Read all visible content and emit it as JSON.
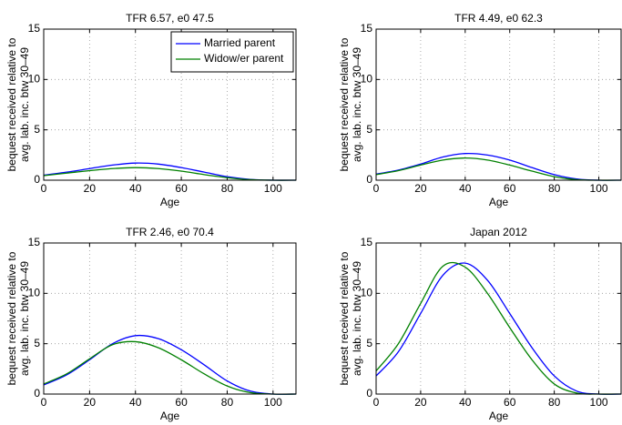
{
  "chart_data": [
    {
      "type": "line",
      "title": "TFR 6.57, e0 47.5",
      "xlabel": "Age",
      "ylabel": [
        "bequest received relative to",
        "avg. lab. inc. btw 30–49"
      ],
      "x": [
        0,
        10,
        20,
        30,
        40,
        50,
        60,
        70,
        80,
        90,
        100,
        110
      ],
      "series": [
        {
          "name": "Married parent",
          "color": "#0000ff",
          "values": [
            0.5,
            0.8,
            1.15,
            1.5,
            1.7,
            1.6,
            1.25,
            0.8,
            0.35,
            0.08,
            0,
            0
          ]
        },
        {
          "name": "Widow/er parent",
          "color": "#008000",
          "values": [
            0.45,
            0.7,
            0.95,
            1.15,
            1.25,
            1.15,
            0.9,
            0.55,
            0.25,
            0.05,
            0,
            0
          ]
        }
      ],
      "xlim": [
        0,
        110
      ],
      "ylim": [
        0,
        15
      ],
      "xticks": [
        0,
        20,
        40,
        60,
        80,
        100
      ],
      "yticks": [
        0,
        5,
        10,
        15
      ],
      "grid": true,
      "legend": "upper right"
    },
    {
      "type": "line",
      "title": "TFR 4.49, e0 62.3",
      "xlabel": "Age",
      "ylabel": [
        "bequest received relative to",
        "avg. lab. inc. btw 30–49"
      ],
      "x": [
        0,
        10,
        20,
        30,
        40,
        50,
        60,
        70,
        80,
        90,
        100,
        110
      ],
      "series": [
        {
          "color": "#0000ff",
          "values": [
            0.6,
            1.0,
            1.6,
            2.3,
            2.65,
            2.5,
            2.0,
            1.25,
            0.55,
            0.12,
            0,
            0
          ]
        },
        {
          "color": "#008000",
          "values": [
            0.55,
            0.95,
            1.5,
            2.0,
            2.2,
            2.0,
            1.5,
            0.9,
            0.35,
            0.05,
            0,
            0
          ]
        }
      ],
      "xlim": [
        0,
        110
      ],
      "ylim": [
        0,
        15
      ],
      "xticks": [
        0,
        20,
        40,
        60,
        80,
        100
      ],
      "yticks": [
        0,
        5,
        10,
        15
      ],
      "grid": true
    },
    {
      "type": "line",
      "title": "TFR 2.46, e0 70.4",
      "xlabel": "Age",
      "ylabel": [
        "bequest received relative to",
        "avg. lab. inc. btw 30–49"
      ],
      "x": [
        0,
        10,
        20,
        30,
        40,
        50,
        60,
        70,
        80,
        90,
        100,
        110
      ],
      "series": [
        {
          "color": "#0000ff",
          "values": [
            0.9,
            1.9,
            3.4,
            5.0,
            5.8,
            5.5,
            4.4,
            2.9,
            1.3,
            0.3,
            0,
            0
          ]
        },
        {
          "color": "#008000",
          "values": [
            1.0,
            2.0,
            3.5,
            4.9,
            5.2,
            4.6,
            3.4,
            2.0,
            0.8,
            0.15,
            0,
            0
          ]
        }
      ],
      "xlim": [
        0,
        110
      ],
      "ylim": [
        0,
        15
      ],
      "xticks": [
        0,
        20,
        40,
        60,
        80,
        100
      ],
      "yticks": [
        0,
        5,
        10,
        15
      ],
      "grid": true
    },
    {
      "type": "line",
      "title": "Japan 2012",
      "xlabel": "Age",
      "ylabel": [
        "bequest received relative to",
        "avg. lab. inc. btw 30–49"
      ],
      "x": [
        0,
        10,
        20,
        30,
        40,
        50,
        60,
        70,
        80,
        90,
        100,
        110
      ],
      "series": [
        {
          "color": "#0000ff",
          "values": [
            1.8,
            4.2,
            8.0,
            11.8,
            13.0,
            11.3,
            8.0,
            4.6,
            1.8,
            0.3,
            0,
            0
          ]
        },
        {
          "color": "#008000",
          "values": [
            2.3,
            5.0,
            9.0,
            12.7,
            12.6,
            10.0,
            6.6,
            3.4,
            1.0,
            0.1,
            0,
            0
          ]
        }
      ],
      "xlim": [
        0,
        110
      ],
      "ylim": [
        0,
        15
      ],
      "xticks": [
        0,
        20,
        40,
        60,
        80,
        100
      ],
      "yticks": [
        0,
        5,
        10,
        15
      ],
      "grid": true
    }
  ]
}
